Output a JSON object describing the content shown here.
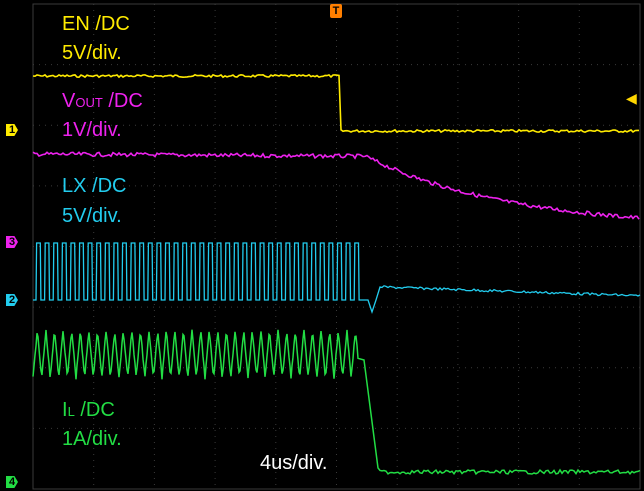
{
  "screen": {
    "time_scale": "4us/div.",
    "trigger_marker": "T",
    "trigger_level_marker": "◀"
  },
  "channels": [
    {
      "id": "1",
      "name": "EN /DC",
      "scale": "5V/div.",
      "color": "#ffeb00"
    },
    {
      "id": "2",
      "name_main": "V",
      "name_sub": "OUT",
      "name_rest": " /DC",
      "scale": "1V/div.",
      "color": "#ee22ee"
    },
    {
      "id": "3",
      "name": "LX /DC",
      "scale": "5V/div.",
      "color": "#22ccee"
    },
    {
      "id": "4",
      "name_main": "I",
      "name_sub": "L",
      "name_rest": " /DC",
      "scale": "1A/div.",
      "color": "#22dd44"
    }
  ],
  "channel_markers": {
    "ch1": "1",
    "ch2": "2",
    "ch3": "3",
    "ch4": "4"
  },
  "colors": {
    "background": "#000000",
    "grid": "#3a3a3a",
    "en": "#ffeb00",
    "vout": "#ee22ee",
    "lx": "#22ccee",
    "il": "#22dd44",
    "trigger": "#ff7f00"
  }
}
